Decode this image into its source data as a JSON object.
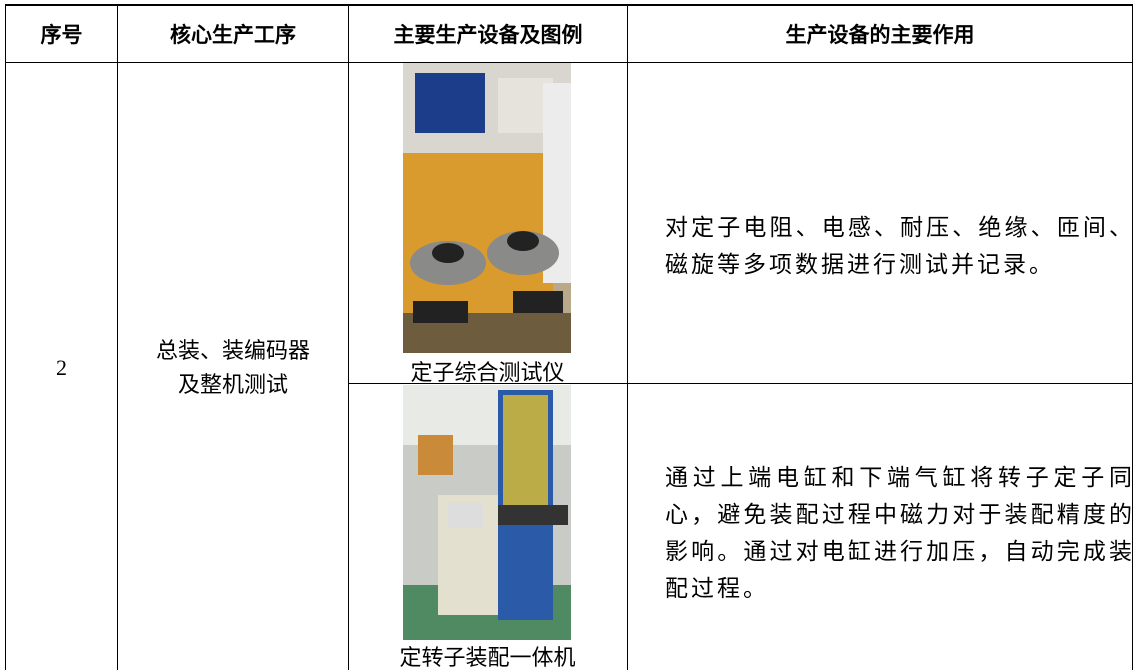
{
  "table": {
    "header": [
      "序号",
      "核心生产工序",
      "主要生产设备及图例",
      "生产设备的主要作用"
    ],
    "rows": [
      {
        "no": "2",
        "process": [
          "总装、装编码器",
          "及整机测试"
        ],
        "equipment": [
          {
            "name": "定子综合测试仪",
            "function": "对定子电阻、电感、耐压、绝缘、匝间、磁旋等多项数据进行测试并记录。"
          },
          {
            "name": "定转子装配一体机",
            "function": "通过上端电缸和下端气缸将转子定子同心，避免装配过程中磁力对于装配精度的影响。通过对电缸进行加压，自动完成装配过程。"
          }
        ]
      }
    ]
  }
}
